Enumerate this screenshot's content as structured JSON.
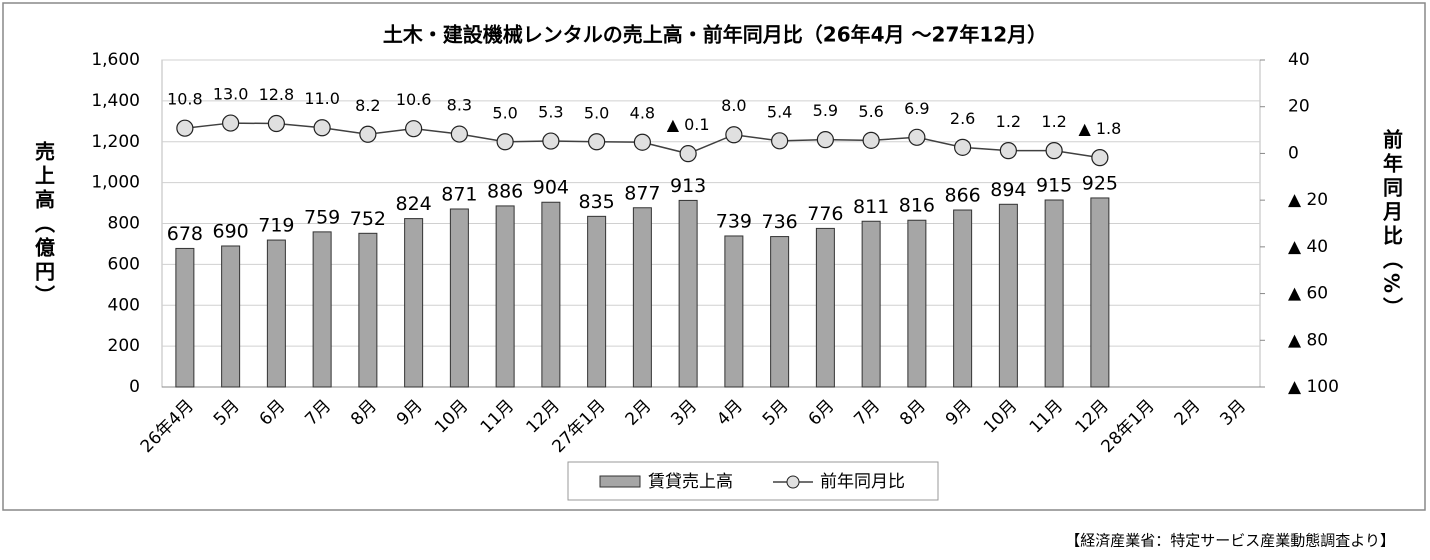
{
  "chart_data": {
    "type": "bar-line",
    "title": "土木・建設機械レンタルの売上高・前年同月比（26年4月 ～27年12月）",
    "y_label": "売上高（億円）",
    "y2_label": "前年同月比（%）",
    "source": "【経済産業省：特定サービス産業動態調査より】",
    "categories": [
      "26年4月",
      "5月",
      "6月",
      "7月",
      "8月",
      "9月",
      "10月",
      "11月",
      "12月",
      "27年1月",
      "2月",
      "3月",
      "4月",
      "5月",
      "6月",
      "7月",
      "8月",
      "9月",
      "10月",
      "11月",
      "12月",
      "28年1月",
      "2月",
      "3月"
    ],
    "series": [
      {
        "name": "賃貸売上高",
        "type": "bar",
        "color": "#a6a6a6",
        "values": [
          678,
          690,
          719,
          759,
          752,
          824,
          871,
          886,
          904,
          835,
          877,
          913,
          739,
          736,
          776,
          811,
          816,
          866,
          894,
          915,
          925,
          null,
          null,
          null
        ]
      },
      {
        "name": "前年同月比",
        "type": "line",
        "axis": "y2",
        "color": "#404040",
        "marker_color": "#e0e0e0",
        "values": [
          10.8,
          13.0,
          12.8,
          11.0,
          8.2,
          10.6,
          8.3,
          5.0,
          5.3,
          5.0,
          4.8,
          -0.1,
          8.0,
          5.4,
          5.9,
          5.6,
          6.9,
          2.6,
          1.2,
          1.2,
          -1.8,
          null,
          null,
          null
        ],
        "value_labels": [
          "10.8",
          "13.0",
          "12.8",
          "11.0",
          "8.2",
          "10.6",
          "8.3",
          "5.0",
          "5.3",
          "5.0",
          "4.8",
          "▲ 0.1",
          "8.0",
          "5.4",
          "5.9",
          "5.6",
          "6.9",
          "2.6",
          "1.2",
          "1.2",
          "▲ 1.8",
          null,
          null,
          null
        ]
      }
    ],
    "ylim": [
      0,
      1600
    ],
    "yticks": [
      0,
      200,
      400,
      600,
      800,
      {
        "value": 1000,
        "label": "1,000"
      },
      {
        "value": 1200,
        "label": "1,200"
      },
      {
        "value": 1400,
        "label": "1,400"
      },
      {
        "value": 1600,
        "label": "1,600"
      }
    ],
    "y2lim": [
      -100,
      40
    ],
    "y2ticks": [
      {
        "value": -100,
        "label": "▲ 100"
      },
      {
        "value": -80,
        "label": "▲ 80"
      },
      {
        "value": -60,
        "label": "▲ 60"
      },
      {
        "value": -40,
        "label": "▲ 40"
      },
      {
        "value": -20,
        "label": "▲ 20"
      },
      0,
      20,
      40
    ],
    "grid": true,
    "legend": "bottom"
  }
}
